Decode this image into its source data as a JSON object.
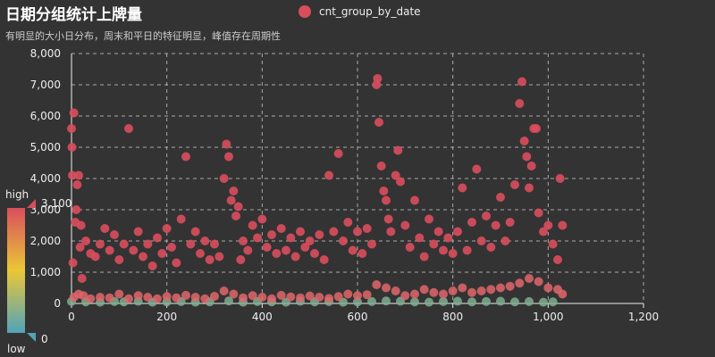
{
  "chart_data": {
    "type": "scatter",
    "title": "日期分组统计上牌量",
    "subtitle": "有明显的大小日分布，周末和平日的特征明显，峰值存在周期性",
    "series": [
      {
        "name": "cnt_group_by_date",
        "color": "#d94e5d",
        "high_points": [
          [
            0,
            5600
          ],
          [
            1,
            5000
          ],
          [
            2,
            4100
          ],
          [
            3,
            1300
          ],
          [
            5,
            6100
          ],
          [
            8,
            2600
          ],
          [
            10,
            3000
          ],
          [
            12,
            3800
          ],
          [
            15,
            4100
          ],
          [
            18,
            1800
          ],
          [
            20,
            2500
          ],
          [
            22,
            800
          ],
          [
            30,
            2000
          ],
          [
            40,
            1600
          ],
          [
            50,
            1500
          ],
          [
            60,
            1900
          ],
          [
            70,
            2400
          ],
          [
            80,
            1700
          ],
          [
            90,
            2200
          ],
          [
            100,
            1400
          ],
          [
            110,
            1900
          ],
          [
            120,
            5600
          ],
          [
            130,
            1700
          ],
          [
            140,
            2300
          ],
          [
            150,
            1500
          ],
          [
            160,
            1900
          ],
          [
            170,
            1200
          ],
          [
            180,
            2100
          ],
          [
            190,
            1600
          ],
          [
            200,
            2400
          ],
          [
            210,
            1800
          ],
          [
            220,
            1300
          ],
          [
            230,
            2700
          ],
          [
            240,
            4700
          ],
          [
            250,
            1900
          ],
          [
            260,
            2300
          ],
          [
            270,
            1600
          ],
          [
            280,
            2000
          ],
          [
            290,
            1400
          ],
          [
            300,
            1900
          ],
          [
            310,
            1500
          ],
          [
            320,
            4000
          ],
          [
            325,
            5100
          ],
          [
            330,
            4700
          ],
          [
            335,
            3300
          ],
          [
            340,
            3600
          ],
          [
            345,
            2800
          ],
          [
            350,
            3100
          ],
          [
            355,
            1400
          ],
          [
            360,
            2000
          ],
          [
            370,
            1700
          ],
          [
            380,
            2500
          ],
          [
            390,
            2100
          ],
          [
            400,
            2700
          ],
          [
            410,
            1800
          ],
          [
            420,
            2200
          ],
          [
            430,
            1600
          ],
          [
            440,
            2400
          ],
          [
            450,
            1700
          ],
          [
            460,
            2100
          ],
          [
            470,
            1500
          ],
          [
            480,
            2300
          ],
          [
            490,
            1800
          ],
          [
            500,
            2000
          ],
          [
            510,
            1600
          ],
          [
            520,
            2200
          ],
          [
            530,
            1400
          ],
          [
            540,
            4100
          ],
          [
            550,
            2300
          ],
          [
            560,
            4800
          ],
          [
            570,
            2000
          ],
          [
            580,
            2600
          ],
          [
            590,
            1700
          ],
          [
            600,
            2300
          ],
          [
            610,
            1600
          ],
          [
            620,
            2400
          ],
          [
            630,
            1900
          ],
          [
            640,
            7000
          ],
          [
            642,
            7200
          ],
          [
            645,
            5800
          ],
          [
            650,
            4400
          ],
          [
            655,
            3600
          ],
          [
            660,
            3300
          ],
          [
            665,
            2700
          ],
          [
            670,
            2300
          ],
          [
            680,
            4100
          ],
          [
            685,
            4900
          ],
          [
            690,
            3900
          ],
          [
            700,
            2500
          ],
          [
            710,
            1800
          ],
          [
            720,
            3300
          ],
          [
            730,
            2100
          ],
          [
            740,
            1500
          ],
          [
            750,
            2700
          ],
          [
            760,
            1900
          ],
          [
            770,
            2300
          ],
          [
            780,
            1700
          ],
          [
            790,
            2100
          ],
          [
            800,
            1600
          ],
          [
            810,
            2300
          ],
          [
            820,
            3700
          ],
          [
            830,
            1700
          ],
          [
            840,
            2600
          ],
          [
            850,
            4300
          ],
          [
            860,
            2000
          ],
          [
            870,
            2800
          ],
          [
            880,
            1800
          ],
          [
            890,
            2500
          ],
          [
            900,
            3400
          ],
          [
            910,
            2000
          ],
          [
            920,
            2600
          ],
          [
            930,
            3800
          ],
          [
            940,
            6400
          ],
          [
            945,
            7100
          ],
          [
            950,
            5200
          ],
          [
            955,
            4700
          ],
          [
            960,
            3700
          ],
          [
            965,
            4400
          ],
          [
            970,
            5600
          ],
          [
            975,
            5600
          ],
          [
            980,
            2900
          ],
          [
            990,
            2300
          ],
          [
            1000,
            2500
          ],
          [
            1010,
            1900
          ],
          [
            1020,
            1400
          ],
          [
            1025,
            4000
          ],
          [
            1030,
            2500
          ]
        ],
        "mid_points": [
          [
            5,
            200
          ],
          [
            15,
            300
          ],
          [
            25,
            250
          ],
          [
            40,
            150
          ],
          [
            60,
            200
          ],
          [
            80,
            180
          ],
          [
            100,
            300
          ],
          [
            120,
            150
          ],
          [
            140,
            250
          ],
          [
            160,
            200
          ],
          [
            180,
            150
          ],
          [
            200,
            220
          ],
          [
            220,
            180
          ],
          [
            240,
            260
          ],
          [
            260,
            200
          ],
          [
            280,
            150
          ],
          [
            300,
            230
          ],
          [
            320,
            400
          ],
          [
            340,
            300
          ],
          [
            360,
            180
          ],
          [
            380,
            250
          ],
          [
            400,
            200
          ],
          [
            420,
            150
          ],
          [
            440,
            260
          ],
          [
            460,
            210
          ],
          [
            480,
            180
          ],
          [
            500,
            240
          ],
          [
            520,
            200
          ],
          [
            540,
            160
          ],
          [
            560,
            220
          ],
          [
            580,
            300
          ],
          [
            600,
            250
          ],
          [
            620,
            280
          ],
          [
            640,
            600
          ],
          [
            660,
            500
          ],
          [
            680,
            400
          ],
          [
            700,
            250
          ],
          [
            720,
            300
          ],
          [
            740,
            450
          ],
          [
            760,
            350
          ],
          [
            780,
            300
          ],
          [
            800,
            400
          ],
          [
            820,
            500
          ],
          [
            840,
            350
          ],
          [
            860,
            400
          ],
          [
            880,
            450
          ],
          [
            900,
            500
          ],
          [
            920,
            550
          ],
          [
            940,
            650
          ],
          [
            960,
            800
          ],
          [
            980,
            700
          ],
          [
            1000,
            500
          ],
          [
            1020,
            450
          ],
          [
            1030,
            300
          ]
        ],
        "low_points": [
          [
            0,
            60
          ],
          [
            30,
            50
          ],
          [
            60,
            40
          ],
          [
            90,
            60
          ],
          [
            110,
            50
          ],
          [
            140,
            70
          ],
          [
            170,
            40
          ],
          [
            200,
            50
          ],
          [
            230,
            60
          ],
          [
            260,
            40
          ],
          [
            290,
            50
          ],
          [
            330,
            80
          ],
          [
            360,
            40
          ],
          [
            390,
            60
          ],
          [
            420,
            50
          ],
          [
            450,
            40
          ],
          [
            480,
            70
          ],
          [
            510,
            50
          ],
          [
            540,
            60
          ],
          [
            570,
            40
          ],
          [
            600,
            50
          ],
          [
            630,
            60
          ],
          [
            660,
            80
          ],
          [
            690,
            70
          ],
          [
            720,
            50
          ],
          [
            750,
            40
          ],
          [
            780,
            60
          ],
          [
            810,
            70
          ],
          [
            840,
            50
          ],
          [
            870,
            60
          ],
          [
            900,
            70
          ],
          [
            930,
            50
          ],
          [
            960,
            60
          ],
          [
            990,
            40
          ],
          [
            1010,
            50
          ]
        ]
      }
    ],
    "xlim": [
      0,
      1200
    ],
    "ylim": [
      0,
      8000
    ],
    "xticks": [
      "0",
      "200",
      "400",
      "600",
      "800",
      "1,000",
      "1,200"
    ],
    "yticks": [
      "0",
      "1,000",
      "2,000",
      "3,000",
      "4,000",
      "5,000",
      "6,000",
      "7,000",
      "8,000"
    ],
    "grid": true,
    "legend": "top-center",
    "visual_map": {
      "high_label": "high",
      "low_label": "low",
      "max_label": "3,100",
      "min_label": "0",
      "colors": [
        "#d94e5d",
        "#eac736",
        "#50a3ba"
      ]
    }
  }
}
